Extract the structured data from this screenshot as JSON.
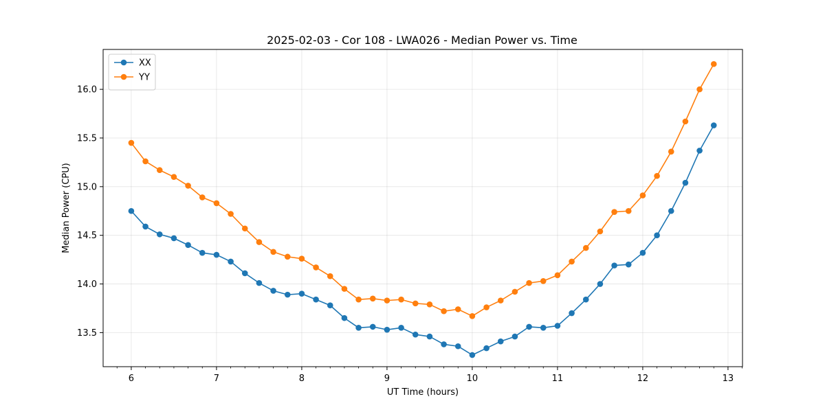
{
  "chart_data": {
    "type": "line",
    "title": "2025-02-03 - Cor 108 - LWA026 - Median Power vs. Time",
    "xlabel": "UT Time (hours)",
    "ylabel": "Median Power (CPU)",
    "xlim": [
      5.67,
      13.17
    ],
    "ylim": [
      13.15,
      16.41
    ],
    "xticks": [
      6,
      7,
      8,
      9,
      10,
      11,
      12,
      13
    ],
    "xtick_labels": [
      "6",
      "7",
      "8",
      "9",
      "10",
      "11",
      "12",
      "13"
    ],
    "yticks": [
      13.5,
      14.0,
      14.5,
      15.0,
      15.5,
      16.0
    ],
    "ytick_labels": [
      "13.5",
      "14.0",
      "14.5",
      "15.0",
      "15.5",
      "16.0"
    ],
    "grid": true,
    "legend_position": "top-left",
    "x": [
      6.0,
      6.1667,
      6.3333,
      6.5,
      6.6667,
      6.8333,
      7.0,
      7.1667,
      7.3333,
      7.5,
      7.6667,
      7.8333,
      8.0,
      8.1667,
      8.3333,
      8.5,
      8.6667,
      8.8333,
      9.0,
      9.1667,
      9.3333,
      9.5,
      9.6667,
      9.8333,
      10.0,
      10.1667,
      10.3333,
      10.5,
      10.6667,
      10.8333,
      11.0,
      11.1667,
      11.3333,
      11.5,
      11.6667,
      11.8333,
      12.0,
      12.1667,
      12.3333,
      12.5,
      12.6667,
      12.8333
    ],
    "series": [
      {
        "name": "XX",
        "color": "#1f77b4",
        "values": [
          14.75,
          14.59,
          14.51,
          14.47,
          14.4,
          14.32,
          14.3,
          14.23,
          14.11,
          14.01,
          13.93,
          13.89,
          13.9,
          13.84,
          13.78,
          13.65,
          13.55,
          13.56,
          13.53,
          13.55,
          13.48,
          13.46,
          13.38,
          13.36,
          13.27,
          13.34,
          13.41,
          13.46,
          13.56,
          13.55,
          13.57,
          13.7,
          13.84,
          14.0,
          14.19,
          14.2,
          14.32,
          14.5,
          14.75,
          15.04,
          15.37,
          15.63
        ]
      },
      {
        "name": "YY",
        "color": "#ff7f0e",
        "values": [
          15.45,
          15.26,
          15.17,
          15.1,
          15.01,
          14.89,
          14.83,
          14.72,
          14.57,
          14.43,
          14.33,
          14.28,
          14.26,
          14.17,
          14.08,
          13.95,
          13.84,
          13.85,
          13.83,
          13.84,
          13.8,
          13.79,
          13.72,
          13.74,
          13.67,
          13.76,
          13.83,
          13.92,
          14.01,
          14.03,
          14.09,
          14.23,
          14.37,
          14.54,
          14.74,
          14.75,
          14.91,
          15.11,
          15.36,
          15.67,
          16.0,
          16.26
        ]
      }
    ]
  }
}
